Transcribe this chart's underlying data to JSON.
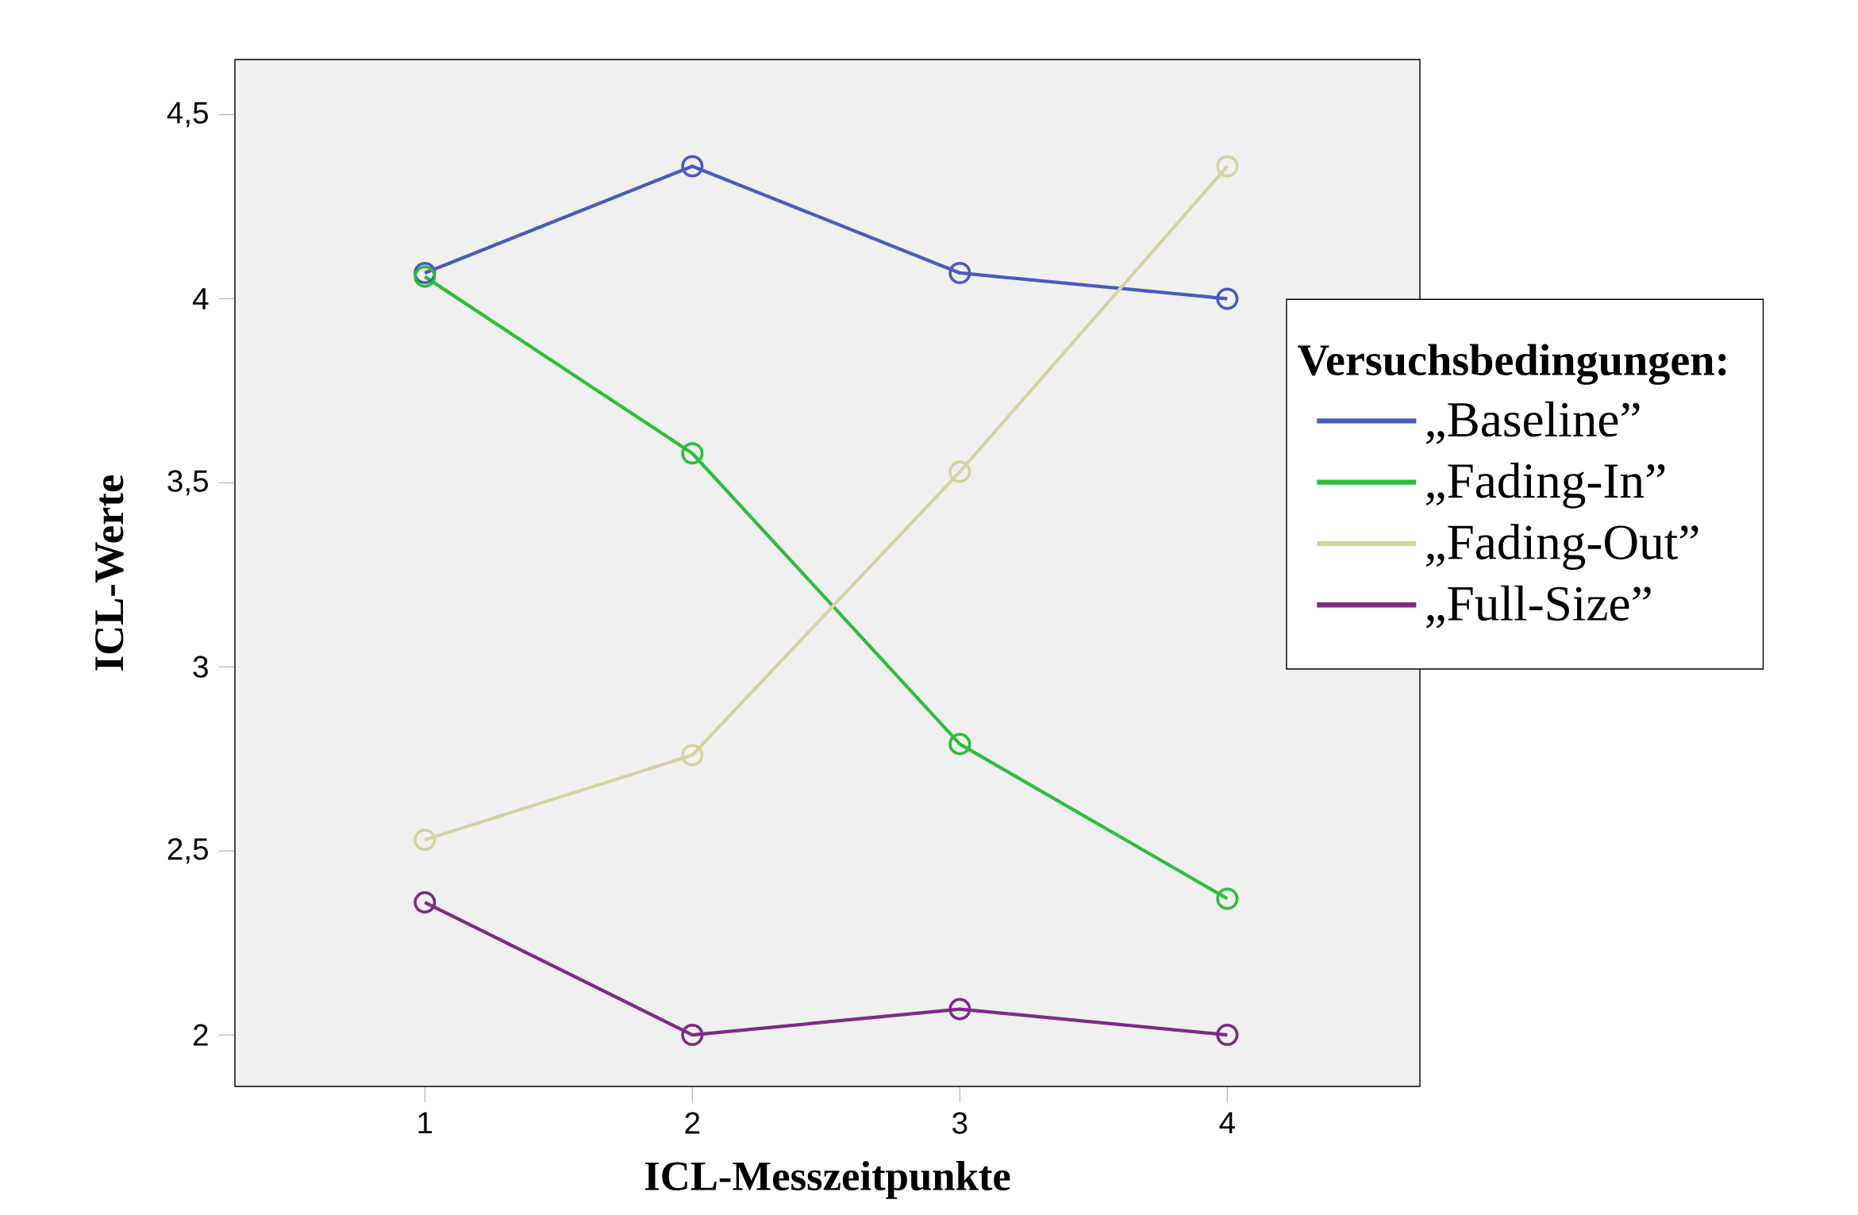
{
  "chart_data": {
    "type": "line",
    "xlabel": "ICL-Messzeitpunkte",
    "ylabel": "ICL-Werte",
    "legend_title": "Versuchsbedingungen:",
    "x": [
      1,
      2,
      3,
      4
    ],
    "xlim": [
      0.29,
      4.72
    ],
    "xticks": [
      1,
      2,
      3,
      4
    ],
    "ylim": [
      1.86,
      4.65
    ],
    "yticks": [
      {
        "value": 2,
        "label": "2"
      },
      {
        "value": 2.5,
        "label": "2,5"
      },
      {
        "value": 3,
        "label": "3"
      },
      {
        "value": 3.5,
        "label": "3,5"
      },
      {
        "value": 4,
        "label": "4"
      },
      {
        "value": 4.5,
        "label": "4,5"
      }
    ],
    "series": [
      {
        "name": "„Baseline”",
        "color": "#4a5bbf",
        "values": [
          4.07,
          4.36,
          4.07,
          4.0
        ]
      },
      {
        "name": "„Fading-In”",
        "color": "#2ebd3c",
        "values": [
          4.06,
          3.58,
          2.79,
          2.37
        ]
      },
      {
        "name": "„Fading-Out”",
        "color": "#d6d3a3",
        "values": [
          2.53,
          2.76,
          3.53,
          4.36
        ]
      },
      {
        "name": "„Full-Size”",
        "color": "#7d2a86",
        "values": [
          2.36,
          2.0,
          2.07,
          2.0
        ]
      }
    ],
    "marker": "circle",
    "line_style": "solid",
    "legend": "right"
  }
}
